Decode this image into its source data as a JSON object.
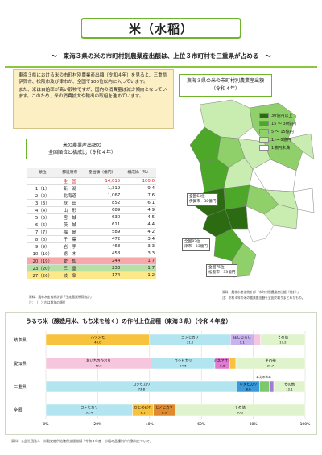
{
  "title": "米（水稲）",
  "subtitle": "〜　東海３県の米の市町村別農業産出額は、上位３市町村を三重県が占める　〜",
  "intro": {
    "p1": "東海３県における米の市町村別農業産出額（令和４年）を見ると、三重県伊賀市、松阪市及び津市が、全国で100位以内に入っています。",
    "p2": "また、米は自給率が高い穀物ですが、国内の消費量は減少傾向となっています。このため、米の消費拡大や輸出の取組を進めています。"
  },
  "map": {
    "title_line1": "東海３県の米の市町村別農業産出額",
    "title_line2": "（令和４年）",
    "legend": [
      {
        "label": "30億円以上",
        "color": "#2d6b12"
      },
      {
        "label": "15 〜 30億円",
        "color": "#4da82a"
      },
      {
        "label": "5 〜 15億円",
        "color": "#8fd06a"
      },
      {
        "label": "1 〜 5億円",
        "color": "#c9ecb0"
      },
      {
        "label": "1億円未満",
        "color": "#ffffff"
      }
    ],
    "callouts": [
      {
        "line1": "全国64位",
        "line2": "伊賀市　38億円"
      },
      {
        "line1": "全国75位",
        "line2": "松阪市　33億円"
      },
      {
        "line1": "全国82位",
        "line2": "津市　33億円"
      }
    ],
    "note1": "資料：農林水産省統計部「市町村別農業産出額（推計）」",
    "note2": "注：令和４年の米の農業産出額を全国で取りまとめたもの。"
  },
  "ranking": {
    "title_line1": "米の農業産出額の",
    "title_line2": "全国順位と構成比（令和４年）",
    "headers": [
      "順位",
      "都道府県",
      "産出額（億円）",
      "構成比（%）"
    ],
    "rows": [
      {
        "rank": "",
        "pref": "全　国",
        "value": "14,015",
        "share": "100.0",
        "type": "total"
      },
      {
        "rank": "1（1）",
        "pref": "新　潟",
        "value": "1,319",
        "share": "9.4",
        "type": ""
      },
      {
        "rank": "2（2）",
        "pref": "北海道",
        "value": "1,067",
        "share": "7.6",
        "type": ""
      },
      {
        "rank": "3（3）",
        "pref": "秋　田",
        "value": "852",
        "share": "6.1",
        "type": ""
      },
      {
        "rank": "4（4）",
        "pref": "山　形",
        "value": "689",
        "share": "4.9",
        "type": ""
      },
      {
        "rank": "5（5）",
        "pref": "宮　城",
        "value": "630",
        "share": "4.5",
        "type": ""
      },
      {
        "rank": "6（6）",
        "pref": "茨　城",
        "value": "611",
        "share": "4.4",
        "type": ""
      },
      {
        "rank": "7（7）",
        "pref": "福　島",
        "value": "589",
        "share": "4.2",
        "type": ""
      },
      {
        "rank": "8（8）",
        "pref": "千　葉",
        "value": "472",
        "share": "3.4",
        "type": ""
      },
      {
        "rank": "9（9）",
        "pref": "岩　手",
        "value": "468",
        "share": "3.3",
        "type": ""
      },
      {
        "rank": "10（10）",
        "pref": "栃　木",
        "value": "458",
        "share": "3.3",
        "type": ""
      },
      {
        "rank": "20（19）",
        "pref": "愛　知",
        "value": "244",
        "share": "1.7",
        "type": "aichi"
      },
      {
        "rank": "23（20）",
        "pref": "三　重",
        "value": "233",
        "share": "1.7",
        "type": "mie"
      },
      {
        "rank": "27（26）",
        "pref": "岐　阜",
        "value": "174",
        "share": "1.2",
        "type": "gifu"
      }
    ],
    "note1": "資料：農林水産省統計部「生産農業所得統計」",
    "note2": "注：（　）内は前年の順位"
  },
  "chart_data": {
    "type": "bar",
    "title": "うるち米（醸造用米、もち米を除く）の作付上位品種（東海３県）（令和４年産）",
    "categories": [
      "岐阜県",
      "愛知県",
      "三重県",
      "全国"
    ],
    "xlim": [
      0,
      100
    ],
    "ticks": [
      "0%",
      "20%",
      "40%",
      "60%",
      "80%",
      "100%"
    ],
    "bars": [
      [
        {
          "name": "ハツシモ",
          "value": 40.0,
          "color": "#f7c23e"
        },
        {
          "name": "コシヒカリ",
          "value": 31.2,
          "color": "#b3e5f0"
        },
        {
          "name": "ほしじるし",
          "value": 9.1,
          "color": "#c9b3ef"
        },
        {
          "name": "",
          "value": 2.5,
          "color": "#f5c6dd"
        },
        {
          "name": "その他",
          "value": 17.2,
          "color": "#dff3cc"
        }
      ],
      [
        {
          "name": "あいちのかおり",
          "value": 40.6,
          "color": "#f5c6dd"
        },
        {
          "name": "コシヒカリ",
          "value": 24.6,
          "color": "#b3e5f0"
        },
        {
          "name": "ミネアサヒ",
          "value": 5.8,
          "color": "#e07ad1"
        },
        {
          "name": "",
          "value": 2.3,
          "color": "#f7c23e"
        },
        {
          "name": "その他",
          "value": 26.7,
          "color": "#dff3cc"
        }
      ],
      [
        {
          "name": "コシヒカリ",
          "value": 73.8,
          "color": "#b3e5f0"
        },
        {
          "name": "キヌヒカリ",
          "value": 8.6,
          "color": "#3a9ad9"
        },
        {
          "name": "",
          "value": 3.8,
          "color": "#7cc96b"
        },
        {
          "name": "",
          "value": 1.7,
          "color": "#a37bd6"
        },
        {
          "name": "その他",
          "value": 12.1,
          "color": "#dff3cc"
        }
      ],
      [
        {
          "name": "コシヒカリ",
          "value": 33.4,
          "color": "#b3e5f0"
        },
        {
          "name": "ひとめぼれ",
          "value": 8.1,
          "color": "#f7c23e"
        },
        {
          "name": "ヒノヒカリ",
          "value": 8.3,
          "color": "#e08a2e"
        },
        {
          "name": "その他",
          "value": 50.2,
          "color": "#dff3cc"
        }
      ]
    ],
    "extra_labels": {
      "mie_top": "みえのゆめ"
    }
  },
  "source": "資料：公益社団法人　米穀安定供給確保支援機構「令和４年産　水稲の品種別作付動向について」"
}
